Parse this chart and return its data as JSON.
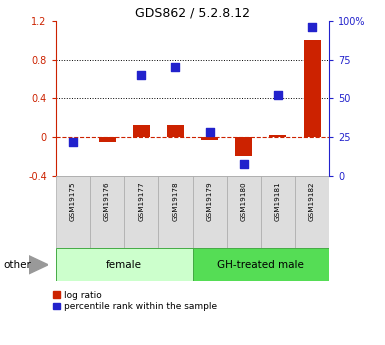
{
  "title": "GDS862 / 5.2.8.12",
  "samples": [
    "GSM19175",
    "GSM19176",
    "GSM19177",
    "GSM19178",
    "GSM19179",
    "GSM19180",
    "GSM19181",
    "GSM19182"
  ],
  "log_ratio": [
    0.0,
    -0.05,
    0.13,
    0.13,
    -0.03,
    -0.19,
    0.02,
    1.0
  ],
  "percentile_rank_pct": [
    22,
    null,
    65,
    70,
    28,
    8,
    52,
    96
  ],
  "groups": [
    {
      "label": "female",
      "start": 0,
      "end": 3,
      "color": "#ccffcc"
    },
    {
      "label": "GH-treated male",
      "start": 4,
      "end": 7,
      "color": "#55dd55"
    }
  ],
  "ylim_left": [
    -0.4,
    1.2
  ],
  "ylim_right": [
    0,
    100
  ],
  "yticks_left": [
    -0.4,
    0.0,
    0.4,
    0.8,
    1.2
  ],
  "ytick_labels_left": [
    "-0.4",
    "0",
    "0.4",
    "0.8",
    "1.2"
  ],
  "yticks_right": [
    0,
    25,
    50,
    75,
    100
  ],
  "ytick_labels_right": [
    "0",
    "25",
    "50",
    "75",
    "100%"
  ],
  "hlines": [
    0.4,
    0.8
  ],
  "bar_color": "#cc2200",
  "dot_color": "#2222cc",
  "legend_bar_label": "log ratio",
  "legend_dot_label": "percentile rank within the sample",
  "other_label": "other",
  "bg_color": "#ffffff",
  "dot_size": 40
}
